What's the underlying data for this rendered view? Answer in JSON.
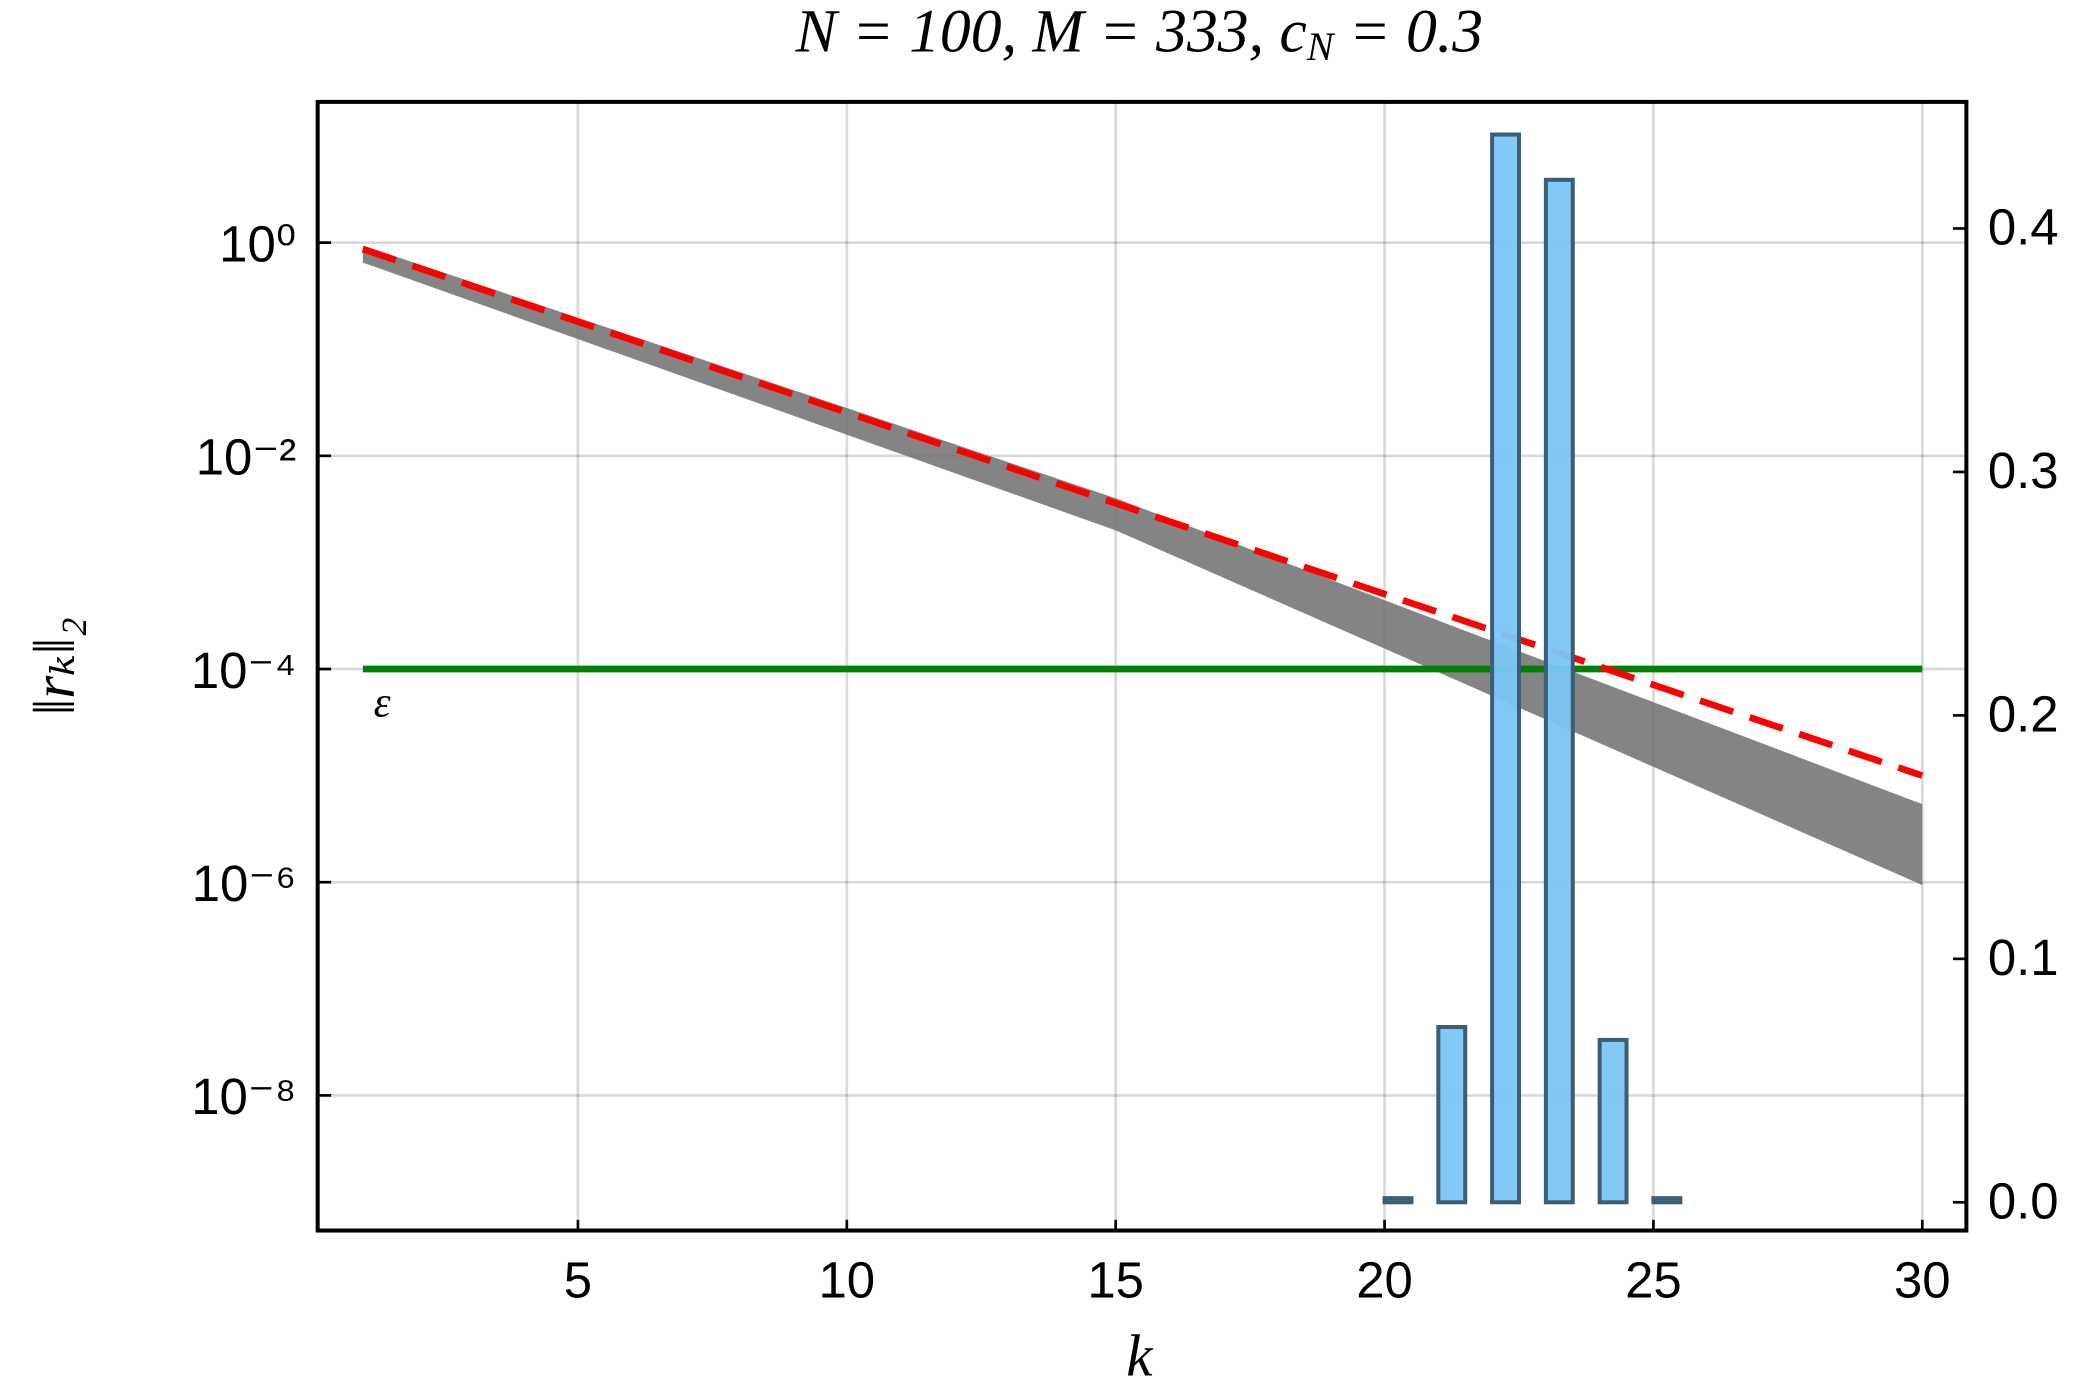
{
  "chart_data": {
    "type": "combo",
    "title": [
      "N = 100, M = 333, c",
      "N",
      " = 0.3"
    ],
    "xlabel": "k",
    "ylabel": "‖rₖ‖₂",
    "annotation": "ε",
    "xlim": [
      0.16,
      30.82
    ],
    "xticks": [
      5,
      10,
      15,
      20,
      25,
      30
    ],
    "ylim": [
      5.4e-10,
      20.9
    ],
    "ylog": true,
    "yticks": [
      {
        "value": 1,
        "label": "10⁰"
      },
      {
        "value": 0.01,
        "label": "10⁻²"
      },
      {
        "value": 0.0001,
        "label": "10⁻⁴"
      },
      {
        "value": 1e-06,
        "label": "10⁻⁶"
      },
      {
        "value": 1e-08,
        "label": "10⁻⁸"
      }
    ],
    "y2lim": [
      -0.0116,
      0.452
    ],
    "y2ticks": [
      {
        "value": 0,
        "label": "0.0"
      },
      0.1,
      0.2,
      0.3,
      0.4
    ],
    "grid": true,
    "series": [
      {
        "type": "bar",
        "axis": "y2",
        "color": "#7cc6f6",
        "x": [
          1,
          2,
          3,
          4,
          5,
          6,
          7,
          8,
          9,
          10,
          11,
          12,
          13,
          14,
          15,
          16,
          17,
          18,
          19,
          20,
          21,
          22,
          23,
          24,
          25,
          26,
          27,
          28,
          29,
          30
        ],
        "values": [
          0,
          0,
          0,
          0,
          0,
          0,
          0,
          0,
          0,
          0,
          0,
          0,
          0,
          0,
          0,
          0,
          0,
          0,
          0,
          0.0017,
          0.072,
          0.4386,
          0.42,
          0.0667,
          0.0017,
          0,
          0,
          0,
          0,
          0
        ]
      },
      {
        "type": "band",
        "color": "#6e6e6e",
        "x": [
          1,
          15,
          30
        ],
        "upper": [
          0.94,
          0.004,
          5.4e-06
        ],
        "lower": [
          0.65,
          0.002,
          9.4e-07
        ]
      },
      {
        "type": "hline",
        "color": "#008000",
        "x": [
          1,
          30
        ],
        "values": [
          0.0001,
          0.0001
        ]
      },
      {
        "type": "dashed",
        "color": "#ff0000",
        "x": [
          1,
          30
        ],
        "values": [
          0.87,
          1e-05
        ]
      }
    ]
  }
}
